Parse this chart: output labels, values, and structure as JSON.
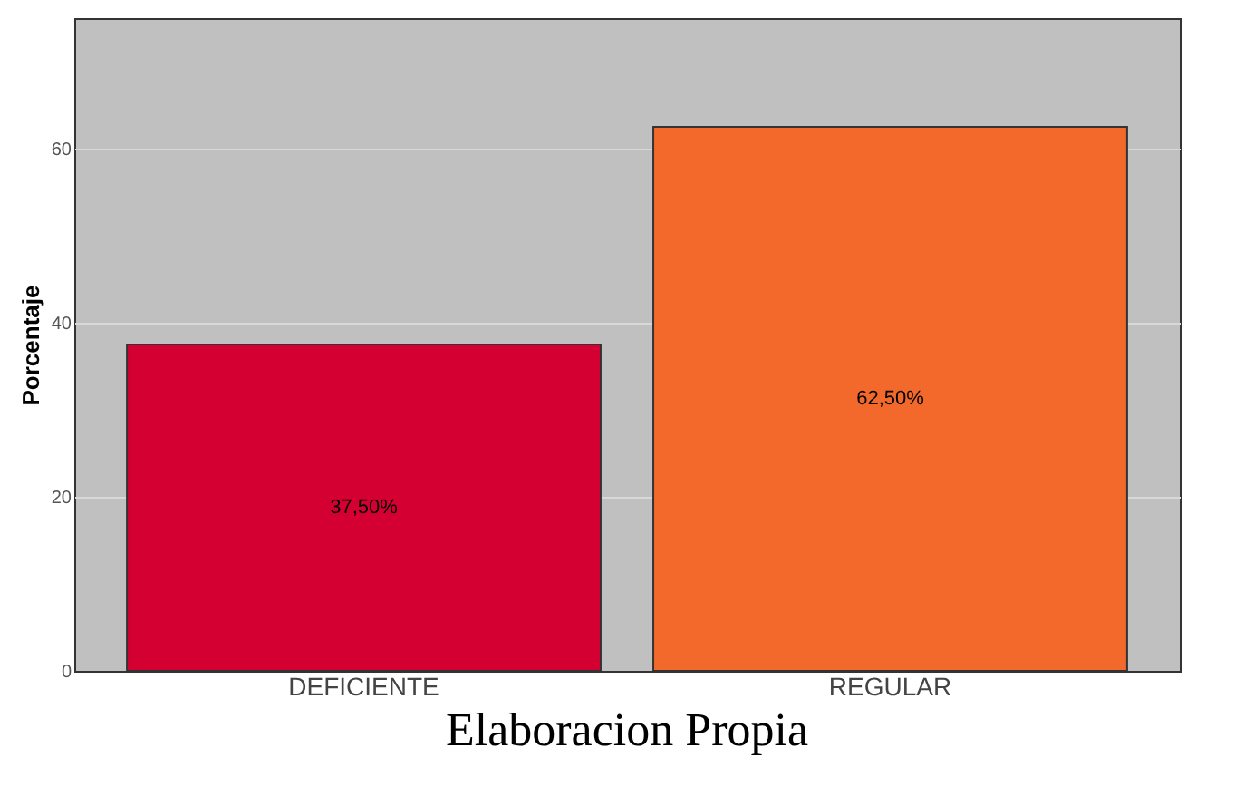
{
  "chart_data": {
    "type": "bar",
    "ylabel": "Porcentaje",
    "categories": [
      "DEFICIENTE",
      "REGULAR"
    ],
    "values": [
      37.5,
      62.5
    ],
    "colors": [
      "#d50032",
      "#f3692b"
    ],
    "value_labels": [
      "37,50%",
      "62,50%"
    ],
    "ylim": [
      0,
      75
    ],
    "yticks": [
      0,
      20,
      40,
      60
    ],
    "grid": "y",
    "annotations": [
      "Elaboracion Propia"
    ]
  }
}
